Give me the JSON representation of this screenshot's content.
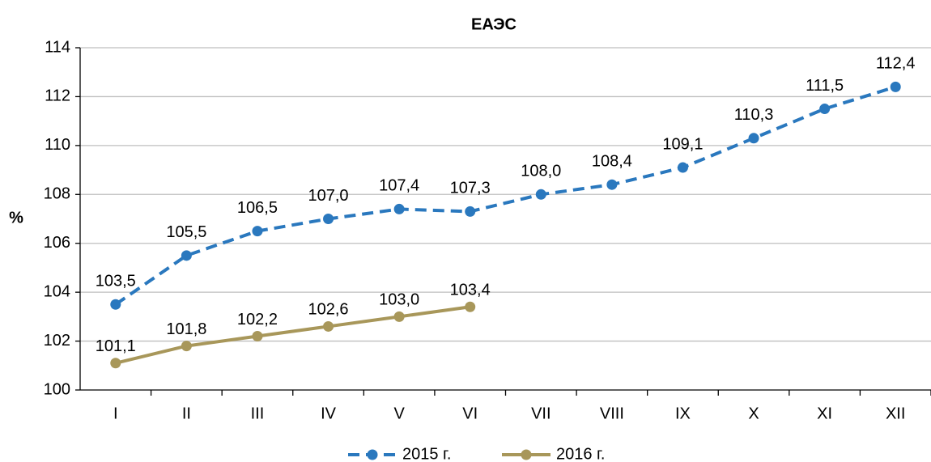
{
  "chart_data": {
    "type": "line",
    "title": "ЕАЭС",
    "y_label": "%",
    "categories": [
      "I",
      "II",
      "III",
      "IV",
      "V",
      "VI",
      "VII",
      "VIII",
      "IX",
      "X",
      "XI",
      "XII"
    ],
    "series": [
      {
        "name": "2015 г.",
        "color": "#2a78be",
        "dash": true,
        "values": [
          103.5,
          105.5,
          106.5,
          107.0,
          107.4,
          107.3,
          108.0,
          108.4,
          109.1,
          110.3,
          111.5,
          112.4
        ],
        "value_labels": [
          "103,5",
          "105,5",
          "106,5",
          "107,0",
          "107,4",
          "107,3",
          "108,0",
          "108,4",
          "109,1",
          "110,3",
          "111,5",
          "112,4"
        ]
      },
      {
        "name": "2016 г.",
        "color": "#a8975a",
        "dash": false,
        "values": [
          101.1,
          101.8,
          102.2,
          102.6,
          103.0,
          103.4,
          null,
          null,
          null,
          null,
          null,
          null
        ],
        "value_labels": [
          "101,1",
          "101,8",
          "102,2",
          "102,6",
          "103,0",
          "103,4",
          null,
          null,
          null,
          null,
          null,
          null
        ]
      }
    ],
    "ylim": [
      100,
      114
    ],
    "yticks": [
      100,
      102,
      104,
      106,
      108,
      110,
      112,
      114
    ],
    "grid": true,
    "legend": "bottom"
  }
}
